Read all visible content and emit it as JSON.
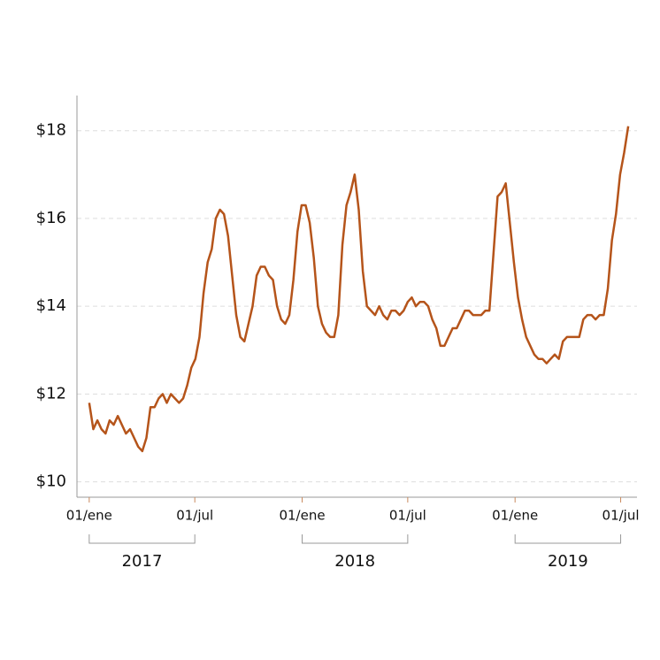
{
  "chart_data": {
    "type": "line",
    "color": "#b5541a",
    "grid": true,
    "x": [
      "2017-01-01",
      "2017-01-08",
      "2017-01-15",
      "2017-01-22",
      "2017-01-29",
      "2017-02-05",
      "2017-02-12",
      "2017-02-19",
      "2017-02-26",
      "2017-03-05",
      "2017-03-12",
      "2017-03-19",
      "2017-03-26",
      "2017-04-02",
      "2017-04-09",
      "2017-04-16",
      "2017-04-23",
      "2017-04-30",
      "2017-05-07",
      "2017-05-14",
      "2017-05-21",
      "2017-05-28",
      "2017-06-04",
      "2017-06-11",
      "2017-06-18",
      "2017-06-25",
      "2017-07-02",
      "2017-07-09",
      "2017-07-16",
      "2017-07-23",
      "2017-07-30",
      "2017-08-06",
      "2017-08-13",
      "2017-08-20",
      "2017-08-27",
      "2017-09-03",
      "2017-09-10",
      "2017-09-17",
      "2017-09-24",
      "2017-10-01",
      "2017-10-08",
      "2017-10-15",
      "2017-10-22",
      "2017-10-29",
      "2017-11-05",
      "2017-11-12",
      "2017-11-19",
      "2017-11-26",
      "2017-12-03",
      "2017-12-10",
      "2017-12-17",
      "2017-12-24",
      "2017-12-31",
      "2018-01-07",
      "2018-01-14",
      "2018-01-21",
      "2018-01-28",
      "2018-02-04",
      "2018-02-11",
      "2018-02-18",
      "2018-02-25",
      "2018-03-04",
      "2018-03-11",
      "2018-03-18",
      "2018-03-25",
      "2018-04-01",
      "2018-04-08",
      "2018-04-15",
      "2018-04-22",
      "2018-04-29",
      "2018-05-06",
      "2018-05-13",
      "2018-05-20",
      "2018-05-27",
      "2018-06-03",
      "2018-06-10",
      "2018-06-17",
      "2018-06-24",
      "2018-07-01",
      "2018-07-08",
      "2018-07-15",
      "2018-07-22",
      "2018-07-29",
      "2018-08-05",
      "2018-08-12",
      "2018-08-19",
      "2018-08-26",
      "2018-09-02",
      "2018-09-09",
      "2018-09-16",
      "2018-09-23",
      "2018-09-30",
      "2018-10-07",
      "2018-10-14",
      "2018-10-21",
      "2018-10-28",
      "2018-11-04",
      "2018-11-11",
      "2018-11-18",
      "2018-11-25",
      "2018-12-02",
      "2018-12-09",
      "2018-12-16",
      "2018-12-23",
      "2018-12-30",
      "2019-01-06",
      "2019-01-13",
      "2019-01-20",
      "2019-01-27",
      "2019-02-03",
      "2019-02-10",
      "2019-02-17",
      "2019-02-24",
      "2019-03-03",
      "2019-03-10",
      "2019-03-17",
      "2019-03-24",
      "2019-03-31",
      "2019-04-07",
      "2019-04-14",
      "2019-04-21",
      "2019-04-28",
      "2019-05-05",
      "2019-05-12",
      "2019-05-19",
      "2019-05-26",
      "2019-06-02",
      "2019-06-09",
      "2019-06-16",
      "2019-06-23",
      "2019-06-30",
      "2019-07-07",
      "2019-07-14"
    ],
    "values": [
      11.8,
      11.2,
      11.4,
      11.2,
      11.1,
      11.4,
      11.3,
      11.5,
      11.3,
      11.1,
      11.2,
      11.0,
      10.8,
      10.7,
      11.0,
      11.7,
      11.7,
      11.9,
      12.0,
      11.8,
      12.0,
      11.9,
      11.8,
      11.9,
      12.2,
      12.6,
      12.8,
      13.3,
      14.3,
      15.0,
      15.3,
      16.0,
      16.2,
      16.1,
      15.6,
      14.7,
      13.8,
      13.3,
      13.2,
      13.6,
      14.0,
      14.7,
      14.9,
      14.9,
      14.7,
      14.6,
      14.0,
      13.7,
      13.6,
      13.8,
      14.6,
      15.7,
      16.3,
      16.3,
      15.9,
      15.1,
      14.0,
      13.6,
      13.4,
      13.3,
      13.3,
      13.8,
      15.4,
      16.3,
      16.6,
      17.0,
      16.2,
      14.8,
      14.0,
      13.9,
      13.8,
      14.0,
      13.8,
      13.7,
      13.9,
      13.9,
      13.8,
      13.9,
      14.1,
      14.2,
      14.0,
      14.1,
      14.1,
      14.0,
      13.7,
      13.5,
      13.1,
      13.1,
      13.3,
      13.5,
      13.5,
      13.7,
      13.9,
      13.9,
      13.8,
      13.8,
      13.8,
      13.9,
      13.9,
      15.2,
      16.5,
      16.6,
      16.8,
      15.9,
      15.0,
      14.2,
      13.7,
      13.3,
      13.1,
      12.9,
      12.8,
      12.8,
      12.7,
      12.8,
      12.9,
      12.8,
      13.2,
      13.3,
      13.3,
      13.3,
      13.3,
      13.7,
      13.8,
      13.8,
      13.7,
      13.8,
      13.8,
      14.4,
      15.5,
      16.1,
      17.0,
      17.5,
      18.1
    ],
    "xlim": [
      "2016-12-11",
      "2019-07-29"
    ],
    "xticks": [
      {
        "value": "2017-01-01",
        "label": "01/ene"
      },
      {
        "value": "2017-07-01",
        "label": "01/jul"
      },
      {
        "value": "2018-01-01",
        "label": "01/ene"
      },
      {
        "value": "2018-07-01",
        "label": "01/jul"
      },
      {
        "value": "2019-01-01",
        "label": "01/ene"
      },
      {
        "value": "2019-07-01",
        "label": "01/jul"
      }
    ],
    "year_groups": [
      {
        "label": "2017",
        "start": "2017-01-01",
        "end": "2017-07-01"
      },
      {
        "label": "2018",
        "start": "2018-01-01",
        "end": "2018-07-01"
      },
      {
        "label": "2019",
        "start": "2019-01-01",
        "end": "2019-07-01"
      }
    ],
    "ylim": [
      9.65,
      18.8
    ],
    "yticks": [
      {
        "value": 10,
        "label": "$10"
      },
      {
        "value": 12,
        "label": "$12"
      },
      {
        "value": 14,
        "label": "$14"
      },
      {
        "value": 16,
        "label": "$16"
      },
      {
        "value": 18,
        "label": "$18"
      }
    ]
  }
}
